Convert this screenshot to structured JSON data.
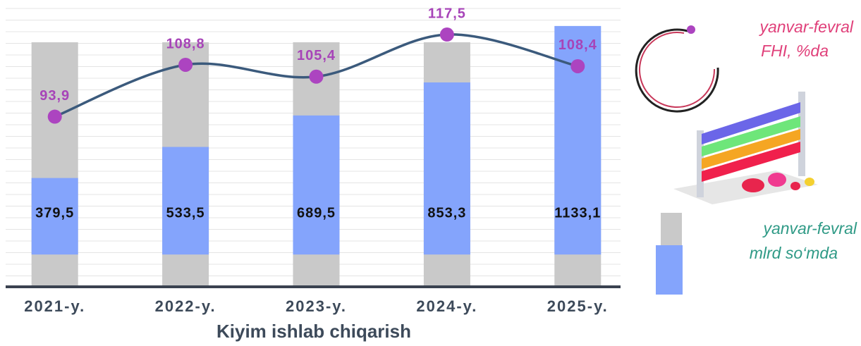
{
  "chart_data": {
    "type": "bar",
    "title": "Kiyim ishlab chiqarish",
    "categories": [
      "2021-y.",
      "2022-y.",
      "2023-y.",
      "2024-y.",
      "2025-y."
    ],
    "ylim": [
      -160,
      1220
    ],
    "y2lim": [
      45,
      125
    ],
    "series": [
      {
        "name": [
          "yanvar-fevral",
          "mlrd so‘mda"
        ],
        "type": "bar",
        "color": "#84a4fc",
        "values": [
          379.5,
          533.5,
          689.5,
          853.3,
          1133.1
        ],
        "value_labels": [
          "379,5",
          "533,5",
          "689,5",
          "853,3",
          "1133,1"
        ]
      },
      {
        "name": [
          "yanvar-fevral",
          "FHI, %da"
        ],
        "type": "line",
        "axis": "y2",
        "color": "#3b5a7c",
        "marker_color": "#ac44c0",
        "values": [
          93.9,
          108.8,
          105.4,
          117.5,
          108.4
        ],
        "value_labels": [
          "93,9",
          "108,8",
          "105,4",
          "117,5",
          "108,4"
        ]
      }
    ]
  }
}
